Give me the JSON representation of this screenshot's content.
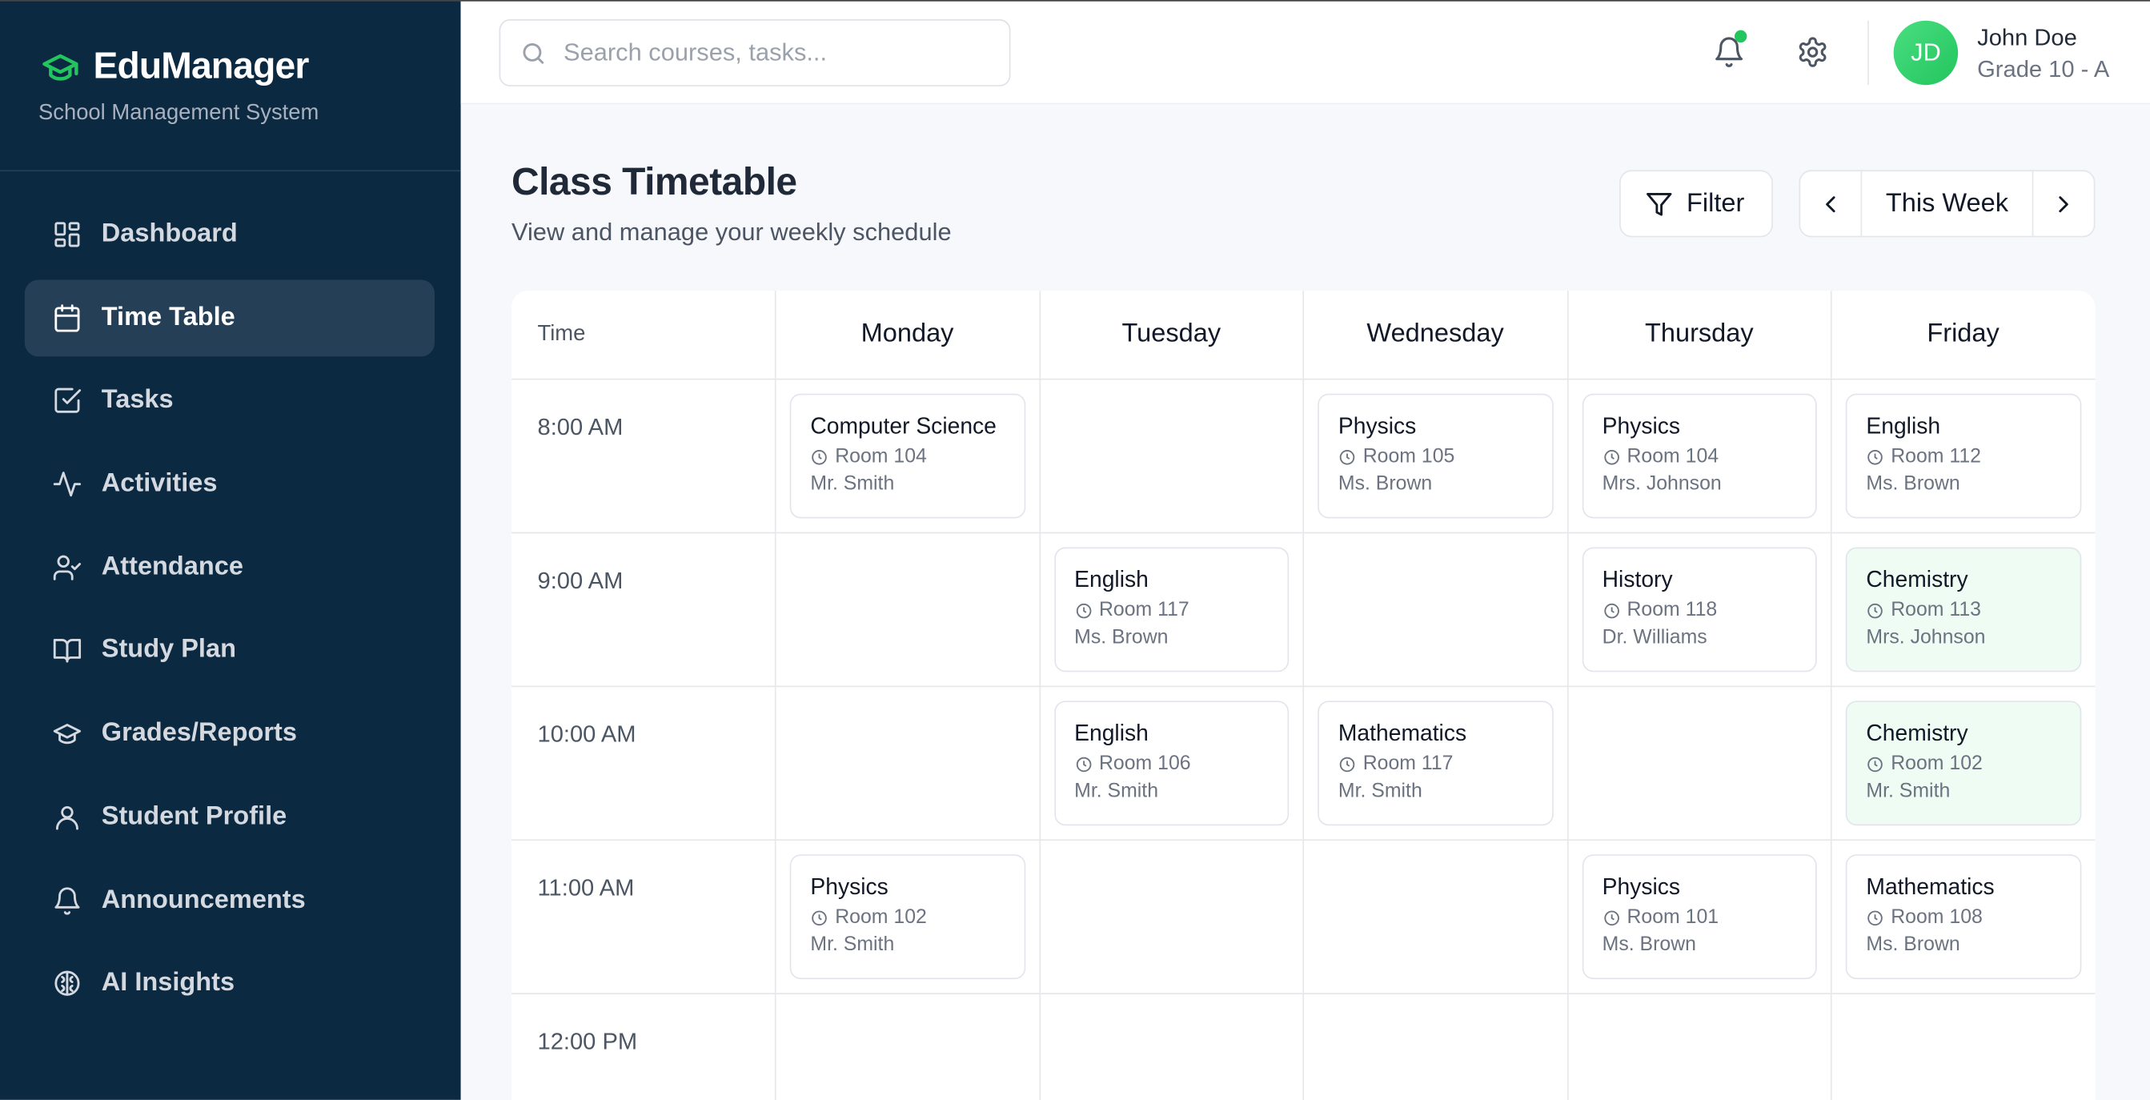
{
  "app": {
    "name": "EduManager",
    "subtitle": "School Management System",
    "accent": "#22c55e"
  },
  "sidebar": {
    "items": [
      {
        "label": "Dashboard",
        "icon": "dashboard-icon"
      },
      {
        "label": "Time Table",
        "icon": "calendar-icon",
        "active": true
      },
      {
        "label": "Tasks",
        "icon": "checkbox-icon"
      },
      {
        "label": "Activities",
        "icon": "activity-icon"
      },
      {
        "label": "Attendance",
        "icon": "user-check-icon"
      },
      {
        "label": "Study Plan",
        "icon": "book-icon"
      },
      {
        "label": "Grades/Reports",
        "icon": "graduation-cap-icon"
      },
      {
        "label": "Student Profile",
        "icon": "user-icon"
      },
      {
        "label": "Announcements",
        "icon": "bell-icon"
      },
      {
        "label": "AI Insights",
        "icon": "brain-icon"
      }
    ]
  },
  "header": {
    "search_placeholder": "Search courses, tasks...",
    "user": {
      "initials": "JD",
      "name": "John Doe",
      "grade": "Grade 10 - A"
    }
  },
  "page": {
    "title": "Class Timetable",
    "description": "View and manage your weekly schedule",
    "filter_label": "Filter",
    "week_label": "This Week"
  },
  "timetable": {
    "time_header": "Time",
    "days": [
      "Monday",
      "Tuesday",
      "Wednesday",
      "Thursday",
      "Friday"
    ],
    "rows": [
      {
        "time": "8:00 AM",
        "cells": [
          {
            "subject": "Computer Science",
            "room": "Room 104",
            "teacher": "Mr. Smith"
          },
          null,
          {
            "subject": "Physics",
            "room": "Room 105",
            "teacher": "Ms. Brown"
          },
          {
            "subject": "Physics",
            "room": "Room 104",
            "teacher": "Mrs. Johnson"
          },
          {
            "subject": "English",
            "room": "Room 112",
            "teacher": "Ms. Brown"
          }
        ]
      },
      {
        "time": "9:00 AM",
        "cells": [
          null,
          {
            "subject": "English",
            "room": "Room 117",
            "teacher": "Ms. Brown"
          },
          null,
          {
            "subject": "History",
            "room": "Room 118",
            "teacher": "Dr. Williams"
          },
          {
            "subject": "Chemistry",
            "room": "Room 113",
            "teacher": "Mrs. Johnson",
            "highlight": true
          }
        ]
      },
      {
        "time": "10:00 AM",
        "cells": [
          null,
          {
            "subject": "English",
            "room": "Room 106",
            "teacher": "Mr. Smith"
          },
          {
            "subject": "Mathematics",
            "room": "Room 117",
            "teacher": "Mr. Smith"
          },
          null,
          {
            "subject": "Chemistry",
            "room": "Room 102",
            "teacher": "Mr. Smith",
            "highlight": true
          }
        ]
      },
      {
        "time": "11:00 AM",
        "cells": [
          {
            "subject": "Physics",
            "room": "Room 102",
            "teacher": "Mr. Smith"
          },
          null,
          null,
          {
            "subject": "Physics",
            "room": "Room 101",
            "teacher": "Ms. Brown"
          },
          {
            "subject": "Mathematics",
            "room": "Room 108",
            "teacher": "Ms. Brown"
          }
        ]
      },
      {
        "time": "12:00 PM",
        "cells": [
          null,
          null,
          null,
          null,
          null
        ]
      }
    ]
  }
}
